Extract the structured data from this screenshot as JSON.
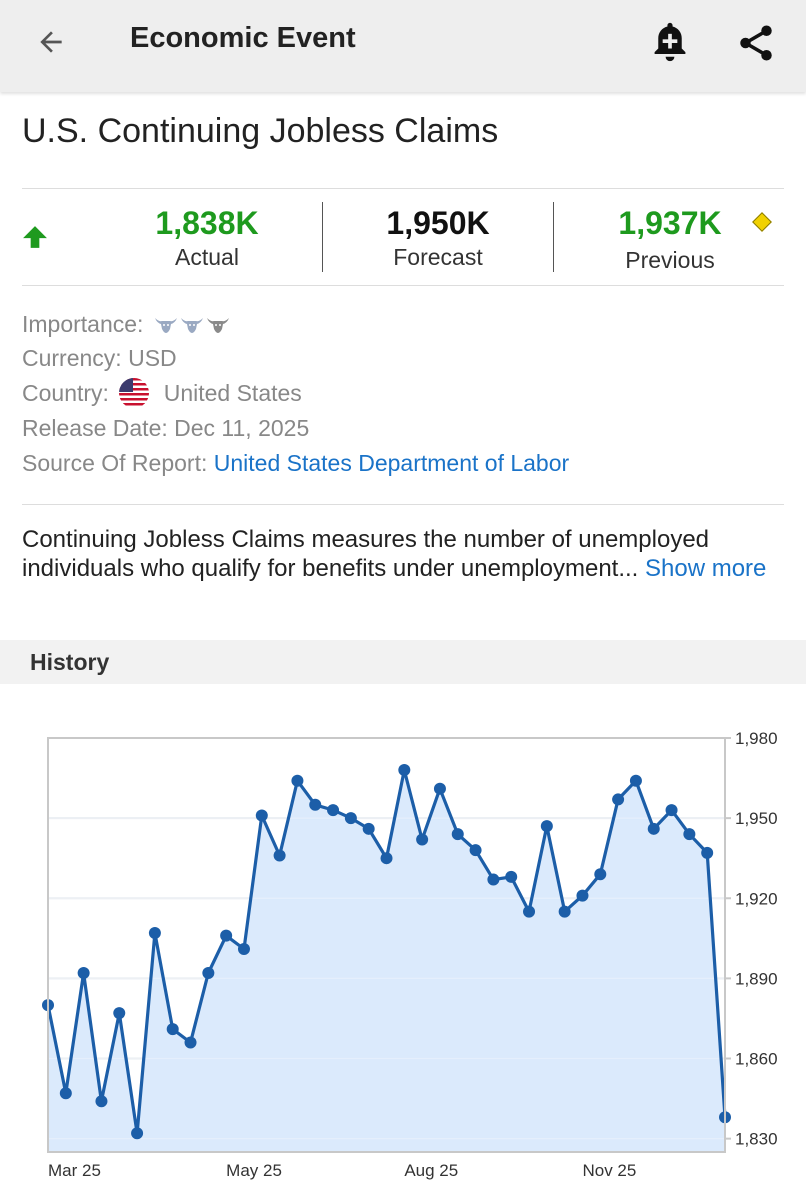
{
  "appbar": {
    "title": "Economic Event",
    "back_icon": "arrow-left-icon",
    "alert_icon": "bell-plus-icon",
    "share_icon": "share-icon"
  },
  "event": {
    "title": "U.S. Continuing Jobless Claims",
    "trend_icon": "arrow-up-icon",
    "actual_value": "1,838K",
    "actual_label": "Actual",
    "forecast_value": "1,950K",
    "forecast_label": "Forecast",
    "previous_value": "1,937K",
    "previous_label": "Previous",
    "previous_revised_icon": "diamond-icon",
    "colors": {
      "positive": "#1e9a1e",
      "neutral": "#111111",
      "link": "#1a73c8"
    }
  },
  "meta": {
    "importance_label": "Importance:",
    "importance_level": 3,
    "importance_max": 3,
    "currency_label": "Currency:",
    "currency_value": "USD",
    "country_label": "Country:",
    "country_value": "United States",
    "release_label": "Release Date:",
    "release_value": "Dec 11, 2025",
    "source_label": "Source Of Report:",
    "source_value": "United States Department of Labor"
  },
  "description": {
    "text": "Continuing Jobless Claims measures the number of unemployed individuals who qualify for benefits under unemployment... ",
    "more_label": "Show more"
  },
  "history": {
    "section_label": "History"
  },
  "chart_data": {
    "type": "area",
    "title": "",
    "xlabel": "",
    "ylabel": "",
    "ylim": [
      1825,
      1980
    ],
    "yticks": [
      1980,
      1950,
      1920,
      1890,
      1860,
      1830
    ],
    "ytick_labels": [
      "1,980",
      "1,950",
      "1,920",
      "1,890",
      "1,860",
      "1,830"
    ],
    "xtick_labels": [
      "Mar 25",
      "May 25",
      "Aug 25",
      "Nov 25"
    ],
    "xtick_index": [
      0,
      10,
      20,
      30
    ],
    "grid": true,
    "legend": "none",
    "colors": {
      "line": "#1c5ea8",
      "fill": "#d5e6fb",
      "grid": "#e3e8ef",
      "frame": "#c8c8c8"
    },
    "values": [
      1880,
      1847,
      1892,
      1844,
      1877,
      1832,
      1907,
      1871,
      1866,
      1892,
      1906,
      1901,
      1951,
      1936,
      1964,
      1955,
      1953,
      1950,
      1946,
      1935,
      1968,
      1942,
      1961,
      1944,
      1938,
      1927,
      1928,
      1915,
      1947,
      1915,
      1921,
      1929,
      1957,
      1964,
      1946,
      1953,
      1944,
      1937,
      1838
    ]
  }
}
